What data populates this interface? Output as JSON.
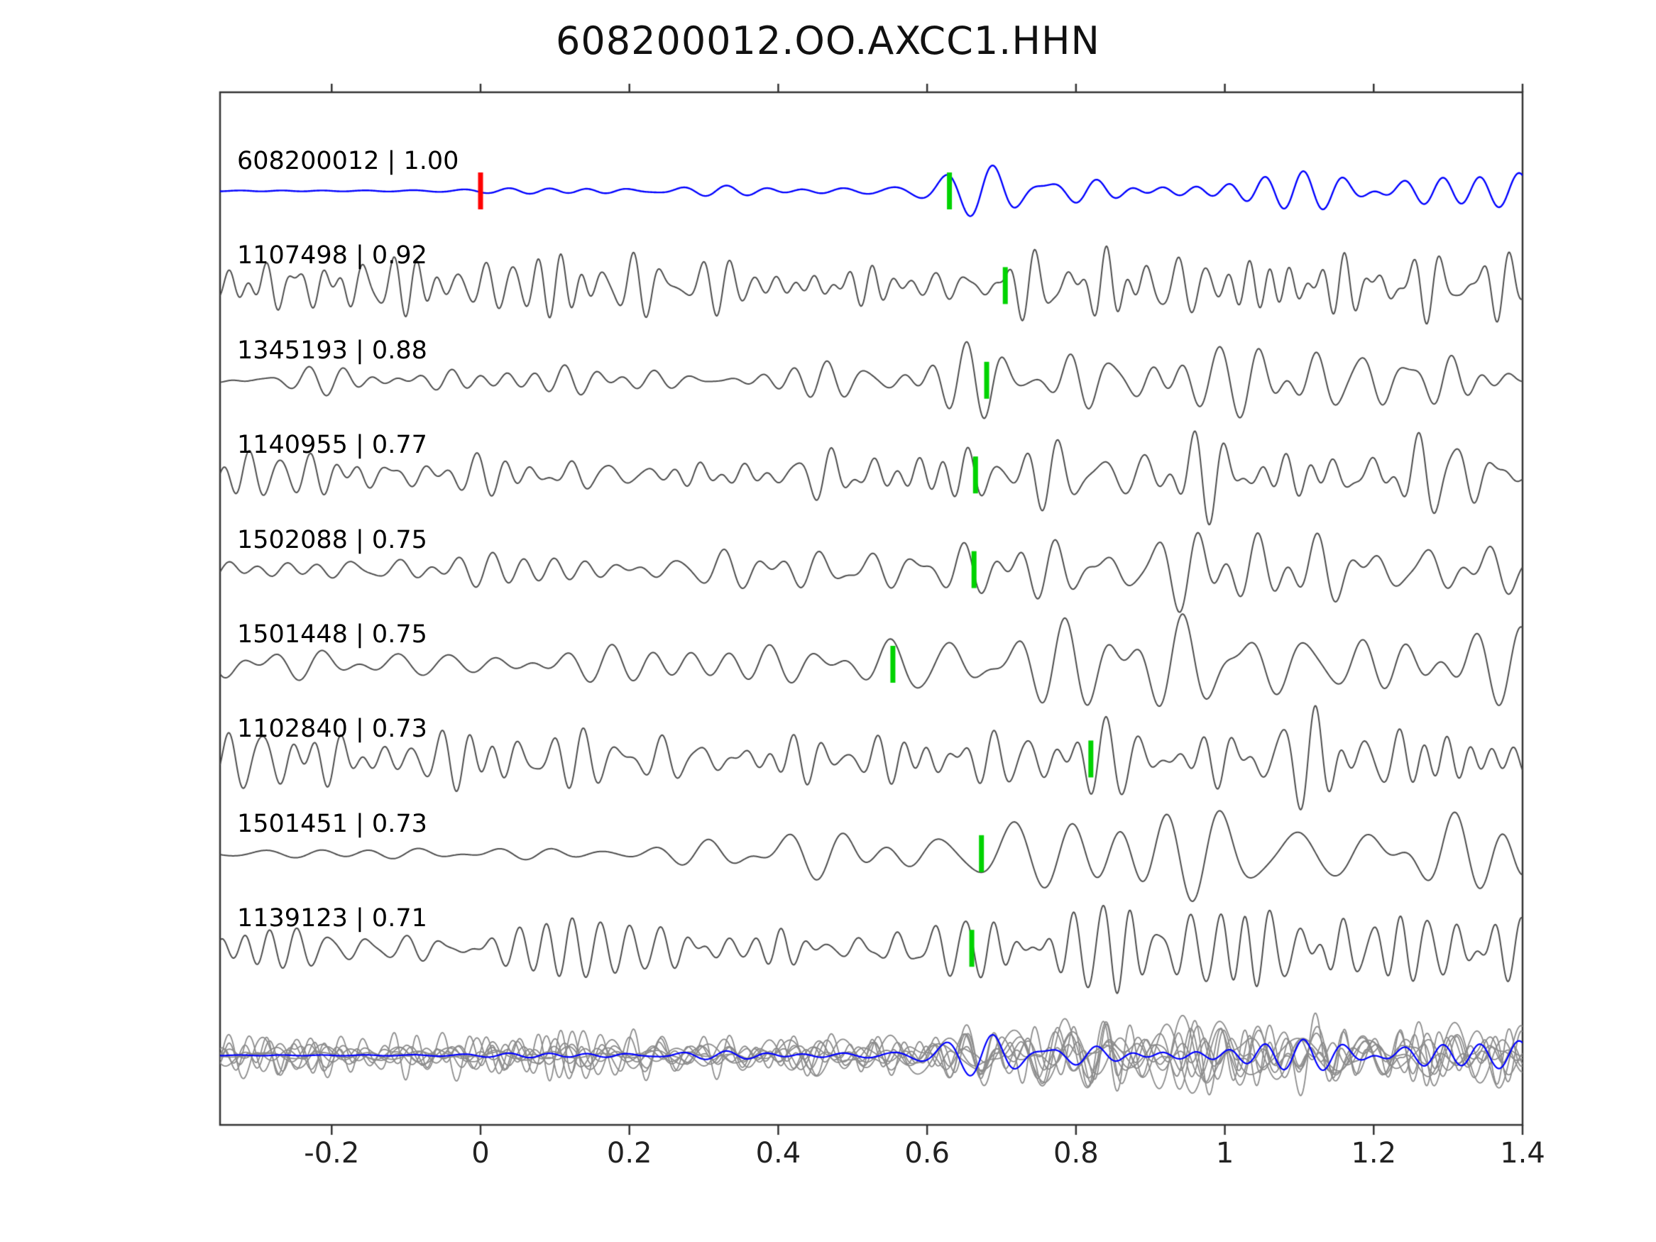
{
  "title": "608200012.OO.AXCC1.HHN",
  "chart_data": {
    "type": "line",
    "title": "608200012.OO.AXCC1.HHN",
    "xlabel": "",
    "ylabel": "",
    "grid": false,
    "legend": "none",
    "xlim": [
      -0.35,
      1.4
    ],
    "xticks": [
      {
        "value": -0.2,
        "label": "-0.2"
      },
      {
        "value": 0,
        "label": "0"
      },
      {
        "value": 0.2,
        "label": "0.2"
      },
      {
        "value": 0.4,
        "label": "0.4"
      },
      {
        "value": 0.6,
        "label": "0.6"
      },
      {
        "value": 0.8,
        "label": "0.8"
      },
      {
        "value": 1,
        "label": "1"
      },
      {
        "value": 1.2,
        "label": "1.2"
      },
      {
        "value": 1.4,
        "label": "1.4"
      }
    ],
    "colors": {
      "template": "#0000ff",
      "match": "#4d4d4d",
      "stack_member": "#8c8c8c",
      "pick_marker": "#00d300",
      "origin_marker": "#ff0000",
      "axis": "#333333"
    },
    "traces": [
      {
        "label": "608200012 | 1.00",
        "event_id": "608200012",
        "cc": 1.0,
        "role": "template",
        "pick": 0.63,
        "origin": 0.0,
        "noise_amp": 0.1,
        "arrival_amp": 1.0,
        "fmin": 13,
        "fmax": 22,
        "quiet_until": 0.06,
        "seed": 11
      },
      {
        "label": "1107498 | 0.92",
        "event_id": "1107498",
        "cc": 0.92,
        "role": "match",
        "pick": 0.705,
        "noise_amp": 0.65,
        "arrival_amp": 0.45,
        "fmin": 20,
        "fmax": 42,
        "seed": 23
      },
      {
        "label": "1345193 | 0.88",
        "event_id": "1345193",
        "cc": 0.88,
        "role": "match",
        "pick": 0.68,
        "noise_amp": 0.45,
        "arrival_amp": 0.75,
        "fmin": 12,
        "fmax": 28,
        "quiet_until": -0.15,
        "seed": 37
      },
      {
        "label": "1140955 | 0.77",
        "event_id": "1140955",
        "cc": 0.77,
        "role": "match",
        "pick": 0.665,
        "noise_amp": 0.6,
        "arrival_amp": 0.45,
        "fmin": 16,
        "fmax": 36,
        "seed": 41
      },
      {
        "label": "1502088 | 0.75",
        "event_id": "1502088",
        "cc": 0.75,
        "role": "match",
        "pick": 0.663,
        "noise_amp": 0.5,
        "arrival_amp": 0.6,
        "fmin": 12,
        "fmax": 26,
        "seed": 53
      },
      {
        "label": "1501448 | 0.75",
        "event_id": "1501448",
        "cc": 0.75,
        "role": "match",
        "pick": 0.554,
        "noise_amp": 0.35,
        "arrival_amp": 0.9,
        "fmin": 9,
        "fmax": 20,
        "seed": 67
      },
      {
        "label": "1102840 | 0.73",
        "event_id": "1102840",
        "cc": 0.73,
        "role": "match",
        "pick": 0.82,
        "noise_amp": 0.85,
        "arrival_amp": 0.45,
        "fmin": 16,
        "fmax": 38,
        "seed": 71
      },
      {
        "label": "1501451 | 0.73",
        "event_id": "1501451",
        "cc": 0.73,
        "role": "match",
        "pick": 0.673,
        "noise_amp": 0.5,
        "arrival_amp": 0.85,
        "fmin": 8,
        "fmax": 18,
        "quiet_until": 0.18,
        "seed": 83
      },
      {
        "label": "1139123 | 0.71",
        "event_id": "1139123",
        "cc": 0.71,
        "role": "match",
        "pick": 0.66,
        "noise_amp": 0.6,
        "arrival_amp": 0.5,
        "fmin": 18,
        "fmax": 40,
        "seed": 97
      }
    ],
    "stack_row": {
      "description": "All match traces overlaid in gray with the blue template on top",
      "member_color": "#8c8c8c",
      "template_color": "#0000ff"
    }
  }
}
